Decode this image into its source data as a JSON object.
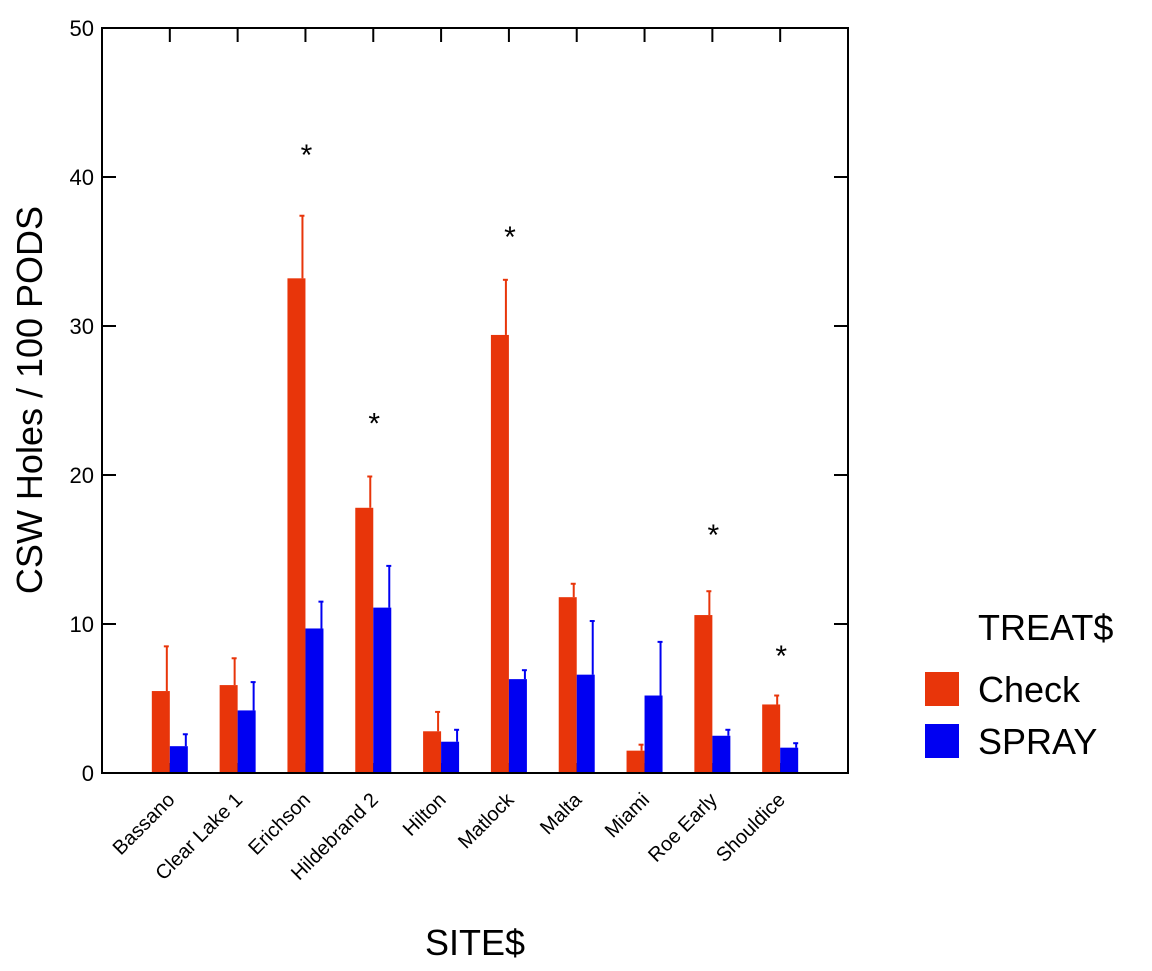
{
  "chart_data": {
    "type": "bar",
    "xlabel": "SITE$",
    "ylabel": "CSW Holes / 100 PODS",
    "ylim": [
      0,
      50
    ],
    "yticks": [
      "0",
      "10",
      "20",
      "30",
      "40",
      "50"
    ],
    "grid": false,
    "legend_position": "right",
    "legend_title": "TREAT$",
    "categories": [
      "Bassano",
      "Clear Lake 1",
      "Erichson",
      "Hildebrand 2",
      "Hilton",
      "Matlock",
      "Malta",
      "Miami",
      "Roe Early",
      "Shouldice"
    ],
    "series": [
      {
        "name": "Check",
        "color": "#e8350a",
        "values": [
          5.5,
          5.9,
          33.2,
          17.8,
          2.8,
          29.4,
          11.8,
          1.5,
          10.6,
          4.6
        ],
        "error": [
          3.0,
          1.8,
          4.2,
          2.1,
          1.3,
          3.7,
          0.9,
          0.4,
          1.6,
          0.6
        ]
      },
      {
        "name": "SPRAY",
        "color": "#0000f2",
        "values": [
          1.8,
          4.2,
          9.7,
          11.1,
          2.1,
          6.3,
          6.6,
          5.2,
          2.5,
          1.7
        ],
        "error": [
          0.8,
          1.9,
          1.8,
          2.8,
          0.8,
          0.6,
          3.6,
          3.6,
          0.4,
          0.3
        ]
      }
    ],
    "annotations": [
      {
        "category": "Erichson",
        "text": "*",
        "y": 42
      },
      {
        "category": "Hildebrand 2",
        "text": "*",
        "y": 24
      },
      {
        "category": "Matlock",
        "text": "*",
        "y": 36.5
      },
      {
        "category": "Roe Early",
        "text": "*",
        "y": 16.5
      },
      {
        "category": "Shouldice",
        "text": "*",
        "y": 8.4
      }
    ]
  }
}
